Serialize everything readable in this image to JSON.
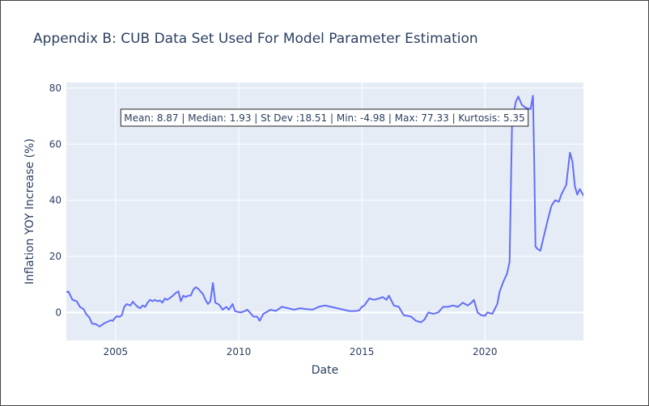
{
  "chart_data": {
    "type": "line",
    "title": "Appendix B: CUB Data Set Used For Model Parameter Estimation",
    "xlabel": "Date",
    "ylabel": "Inflation YOY Increase (%)",
    "xlim": [
      2003.0,
      2024.0
    ],
    "ylim": [
      -10,
      82
    ],
    "x_ticks": [
      2005,
      2010,
      2015,
      2020
    ],
    "x_tick_labels": [
      "2005",
      "2010",
      "2015",
      "2020"
    ],
    "y_ticks": [
      0,
      20,
      40,
      60,
      80
    ],
    "y_tick_labels": [
      "0",
      "20",
      "40",
      "60",
      "80"
    ],
    "grid": true,
    "annotation": "Mean: 8.87 | Median: 1.93 | St Dev :18.51 | Min: -4.98 | Max: 77.33 | Kurtosis: 5.35",
    "colors": {
      "line": "#636efa",
      "plot_bg": "#e5ecf6",
      "grid": "#ffffff",
      "text": "#2a3f5f"
    },
    "series": [
      {
        "x": [
          2003.0,
          2003.08,
          2003.25,
          2003.42,
          2003.55,
          2003.7,
          2003.8,
          2003.93,
          2004.05,
          2004.18,
          2004.35,
          2004.55,
          2004.65,
          2004.8,
          2004.88,
          2004.95,
          2005.05,
          2005.15,
          2005.25,
          2005.35,
          2005.45,
          2005.6,
          2005.7,
          2005.8,
          2005.9,
          2006.0,
          2006.1,
          2006.2,
          2006.3,
          2006.4,
          2006.5,
          2006.6,
          2006.7,
          2006.8,
          2006.9,
          2007.0,
          2007.08,
          2007.18,
          2007.3,
          2007.45,
          2007.55,
          2007.65,
          2007.75,
          2007.85,
          2007.95,
          2008.05,
          2008.15,
          2008.25,
          2008.35,
          2008.45,
          2008.55,
          2008.65,
          2008.75,
          2008.85,
          2008.95,
          2009.05,
          2009.2,
          2009.35,
          2009.5,
          2009.6,
          2009.75,
          2009.85,
          2009.95,
          2010.1,
          2010.25,
          2010.35,
          2010.5,
          2010.6,
          2010.75,
          2010.85,
          2011.0,
          2011.3,
          2011.5,
          2011.75,
          2012.0,
          2012.25,
          2012.5,
          2012.75,
          2013.0,
          2013.25,
          2013.5,
          2013.75,
          2014.0,
          2014.25,
          2014.5,
          2014.75,
          2014.9,
          2015.0,
          2015.1,
          2015.3,
          2015.5,
          2015.7,
          2015.85,
          2016.0,
          2016.1,
          2016.3,
          2016.5,
          2016.7,
          2016.85,
          2017.0,
          2017.2,
          2017.4,
          2017.55,
          2017.7,
          2017.9,
          2018.1,
          2018.3,
          2018.5,
          2018.7,
          2018.9,
          2019.1,
          2019.3,
          2019.45,
          2019.55,
          2019.7,
          2019.85,
          2020.0,
          2020.1,
          2020.3,
          2020.5,
          2020.6,
          2020.75,
          2020.9,
          2021.0,
          2021.1,
          2021.25,
          2021.35,
          2021.5,
          2021.65,
          2021.85,
          2021.95,
          2022.0,
          2022.05,
          2022.15,
          2022.25,
          2022.4,
          2022.55,
          2022.7,
          2022.85,
          2023.0,
          2023.1,
          2023.3,
          2023.45,
          2023.55,
          2023.65,
          2023.75,
          2023.85,
          2023.95,
          2024.05,
          2024.15,
          2024.25,
          2024.32,
          2024.4
        ],
        "y": [
          7.2,
          7.5,
          4.5,
          4.0,
          2.0,
          1.2,
          -0.5,
          -1.8,
          -4.0,
          -4.1,
          -5.0,
          -3.8,
          -3.4,
          -2.8,
          -3.0,
          -2.2,
          -1.3,
          -1.6,
          -1.0,
          2.0,
          3.0,
          2.5,
          3.8,
          2.8,
          2.0,
          1.5,
          2.5,
          2.0,
          3.5,
          4.5,
          4.0,
          4.5,
          4.0,
          4.3,
          3.5,
          5.0,
          4.5,
          5.0,
          5.8,
          7.0,
          7.5,
          4.0,
          6.0,
          5.5,
          6.0,
          6.0,
          8.0,
          9.0,
          8.5,
          7.5,
          6.5,
          4.5,
          3.0,
          4.0,
          10.5,
          3.5,
          2.8,
          1.0,
          2.0,
          1.0,
          3.0,
          0.5,
          0.2,
          0.0,
          0.5,
          1.0,
          -0.5,
          -1.5,
          -1.5,
          -3.0,
          -0.5,
          1.0,
          0.5,
          2.0,
          1.5,
          1.0,
          1.5,
          1.2,
          1.0,
          2.0,
          2.5,
          2.0,
          1.5,
          1.0,
          0.5,
          0.5,
          0.8,
          2.0,
          2.5,
          5.0,
          4.5,
          5.0,
          5.5,
          4.5,
          6.0,
          2.5,
          2.0,
          -1.0,
          -1.2,
          -1.5,
          -3.0,
          -3.5,
          -2.5,
          0.0,
          -0.5,
          0.0,
          2.0,
          2.0,
          2.5,
          2.0,
          3.5,
          2.5,
          3.5,
          4.5,
          0.0,
          -1.0,
          -1.2,
          0.0,
          -0.5,
          3.0,
          7.5,
          11.0,
          14.0,
          18.0,
          68.0,
          75.0,
          77.0,
          74.0,
          73.0,
          72.5,
          77.3,
          55.0,
          23.5,
          22.5,
          22.0,
          27.5,
          33.0,
          38.0,
          40.0,
          39.5,
          42.0,
          45.5,
          57.0,
          54.0,
          45.0,
          42.0,
          44.0,
          42.5,
          41.0,
          39.0,
          40.5,
          41.0,
          39.0
        ]
      }
    ]
  }
}
